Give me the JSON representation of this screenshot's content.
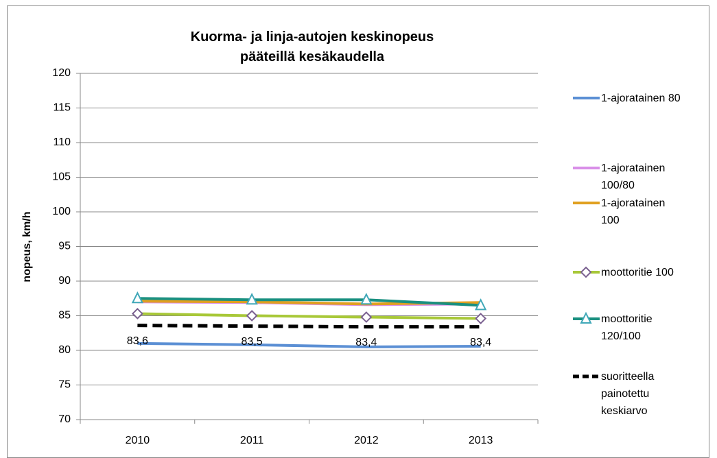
{
  "chart_data": {
    "type": "line",
    "title": "Kuorma- ja linja-autojen keskinopeus pääteillä kesäkaudella",
    "y_label": "nopeus, km/h",
    "categories": [
      "2010",
      "2011",
      "2012",
      "2013"
    ],
    "ylim": [
      70,
      120
    ],
    "yticks": [
      70,
      75,
      80,
      85,
      90,
      95,
      100,
      105,
      110,
      115,
      120
    ],
    "grid": true,
    "legend": "right",
    "series": [
      {
        "name": "1-ajoratainen 80",
        "color": "#5b8fd4",
        "values": [
          81.0,
          80.8,
          80.5,
          80.6
        ]
      },
      {
        "name": "1-ajoratainen 100/80",
        "color": "#d98fe8",
        "values": [
          87.0,
          86.9,
          86.6,
          86.7
        ]
      },
      {
        "name": "1-ajoratainen 100",
        "color": "#e0a020",
        "values": [
          87.1,
          87.0,
          86.7,
          86.9
        ]
      },
      {
        "name": "moottoritie 100",
        "color": "#a8c838",
        "marker": "diamond",
        "values": [
          85.3,
          85.0,
          84.8,
          84.6
        ]
      },
      {
        "name": "moottoritie 120/100",
        "color": "#1a9080",
        "marker": "triangle",
        "values": [
          87.5,
          87.3,
          87.3,
          86.5
        ]
      },
      {
        "name": "suoritteella painotettu keskiarvo",
        "color": "#000000",
        "dash": true,
        "values": [
          83.6,
          83.5,
          83.4,
          83.4
        ],
        "value_labels": [
          "83,6",
          "83,5",
          "83,4",
          "83,4"
        ]
      }
    ]
  }
}
